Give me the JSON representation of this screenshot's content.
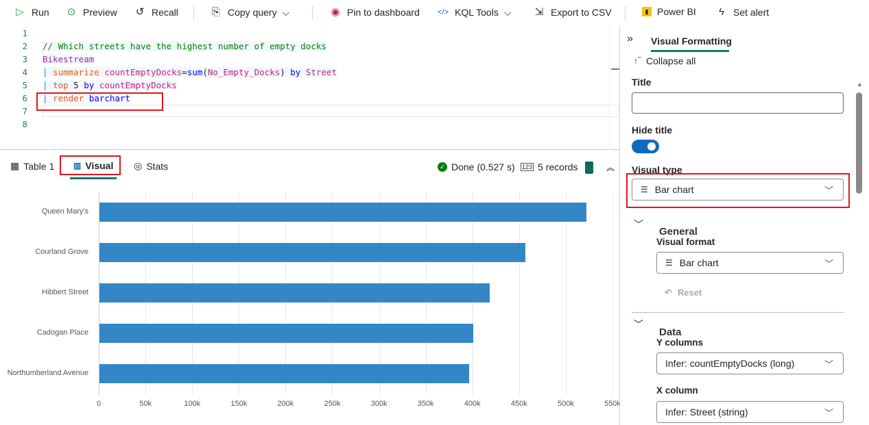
{
  "toolbar": {
    "run": "Run",
    "preview": "Preview",
    "recall": "Recall",
    "copy_query": "Copy query",
    "pin": "Pin to dashboard",
    "kql_tools": "KQL Tools",
    "export_csv": "Export to CSV",
    "power_bi": "Power BI",
    "set_alert": "Set alert"
  },
  "editor": {
    "line_numbers": [
      "1",
      "2",
      "3",
      "4",
      "5",
      "6",
      "7",
      "8"
    ],
    "line2": "// Which streets have the highest number of empty docks",
    "line3": "Bikestream",
    "line4": {
      "pipe": "|",
      "op": "summarize",
      "col": "countEmptyDocks",
      "eq": "=",
      "fn": "sum",
      "p1": "(",
      "arg": "No_Empty_Docks",
      "p2": ")",
      "by": "by",
      "street": "Street"
    },
    "line5": {
      "pipe": "|",
      "op": "top",
      "num": "5",
      "by": "by",
      "col": "countEmptyDocks"
    },
    "line6": {
      "pipe": "|",
      "op": "render",
      "arg": "barchart"
    }
  },
  "results": {
    "tabs": [
      "Table 1",
      "Visual",
      "Stats"
    ],
    "active_tab": "Visual",
    "status": "Done (0.527 s)",
    "records": "5 records"
  },
  "chart_data": {
    "type": "bar",
    "orientation": "horizontal",
    "categories": [
      "Queen Mary's",
      "Courland Grove",
      "Hibbert Street",
      "Cadogan Place",
      "Northumberland Avenue"
    ],
    "values": [
      521000,
      456000,
      418000,
      400000,
      396000
    ],
    "xlim": [
      0,
      550000
    ],
    "x_ticks": [
      "0",
      "50k",
      "100k",
      "150k",
      "200k",
      "250k",
      "300k",
      "350k",
      "400k",
      "450k",
      "500k",
      "550k"
    ],
    "grid": true,
    "color": "#3487c7"
  },
  "panel": {
    "tab": "Visual Formatting",
    "collapse_all": "Collapse all",
    "title_label": "Title",
    "title_value": "",
    "hide_title_label": "Hide title",
    "hide_title_on": true,
    "visual_type_label": "Visual type",
    "visual_type": "Bar chart",
    "general": {
      "heading": "General",
      "visual_format_label": "Visual format",
      "visual_format": "Bar chart",
      "reset": "Reset"
    },
    "data": {
      "heading": "Data",
      "y_columns_label": "Y columns",
      "y_columns": "Infer: countEmptyDocks (long)",
      "x_column_label": "X column",
      "x_column": "Infer: Street (string)"
    }
  },
  "colors": {
    "accent": "#0f7b6c",
    "toggle": "#0f6cbd",
    "highlight": "#e0161b"
  }
}
